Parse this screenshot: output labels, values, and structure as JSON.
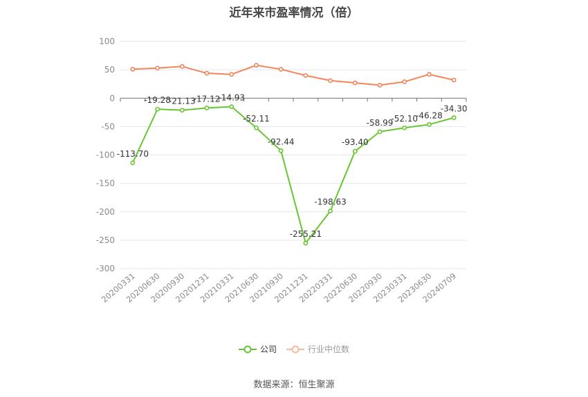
{
  "title": "近年来市盈率情况（倍）",
  "source": "数据来源：恒生聚源",
  "legend": {
    "company": "公司",
    "median": "行业中位数"
  },
  "colors": {
    "company": "#66c630",
    "median": "#f4845a",
    "median_legend": "#f9b9a0",
    "grid": "#e0e6f0",
    "axis": "#6e7079"
  },
  "chart_data": {
    "type": "line",
    "title": "近年来市盈率情况（倍）",
    "xlabel": "",
    "ylabel": "",
    "ylim": [
      -300,
      100
    ],
    "yticks": [
      100,
      50,
      0,
      -50,
      -100,
      -150,
      -200,
      -250,
      -300
    ],
    "grid": true,
    "legend_position": "bottom",
    "categories": [
      "20200331",
      "20200630",
      "20200930",
      "20201231",
      "20210331",
      "20210630",
      "20210930",
      "20211231",
      "20220331",
      "20220630",
      "20220930",
      "20230331",
      "20230630",
      "20240709"
    ],
    "series": [
      {
        "name": "公司",
        "values": [
          -113.7,
          -19.28,
          -21.13,
          -17.12,
          -14.93,
          -52.11,
          -92.44,
          -255.21,
          -198.63,
          -93.4,
          -58.99,
          -52.1,
          -46.28,
          -34.3
        ],
        "labels": [
          "-113.70",
          "-19.28",
          "-21.13",
          "-17.12",
          "-14.93",
          "-52.11",
          "-92.44",
          "-255.21",
          "-198.63",
          "-93.40",
          "-58.99",
          "-52.10",
          "-46.28",
          "-34.30"
        ]
      },
      {
        "name": "行业中位数",
        "values": [
          51,
          53,
          56,
          44,
          42,
          58,
          51,
          40,
          31,
          27,
          23,
          29,
          42,
          32
        ]
      }
    ]
  }
}
